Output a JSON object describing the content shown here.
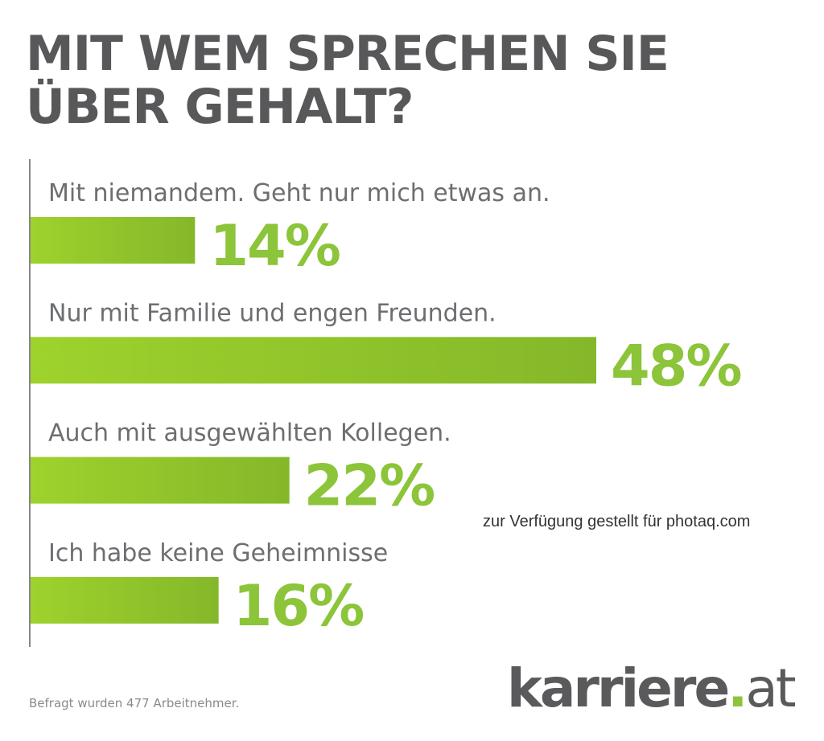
{
  "chart_data": {
    "type": "bar",
    "orientation": "horizontal",
    "title": "MIT WEM SPRECHEN SIE ÜBER GEHALT?",
    "categories": [
      "Mit niemandem. Geht nur mich etwas an.",
      "Nur mit Familie und engen Freunden.",
      "Auch mit ausgewählten Kollegen.",
      "Ich habe keine Geheimnisse"
    ],
    "values": [
      14,
      48,
      22,
      16
    ],
    "value_labels": [
      "14%",
      "48%",
      "22%",
      "16%"
    ],
    "unit": "%",
    "xlim": [
      0,
      48
    ],
    "grid": false,
    "colors": {
      "bar_start": "#9ed22c",
      "bar_end": "#84b82a",
      "value_text": "#8cc43a",
      "title": "#58585a",
      "axis": "#888888"
    }
  },
  "footnote": "Befragt wurden 477 Arbeitnehmer.",
  "logo": {
    "name": "karriere",
    "dot": ".",
    "tld": "at"
  },
  "watermark": "zur Verfügung gestellt für photaq.com"
}
